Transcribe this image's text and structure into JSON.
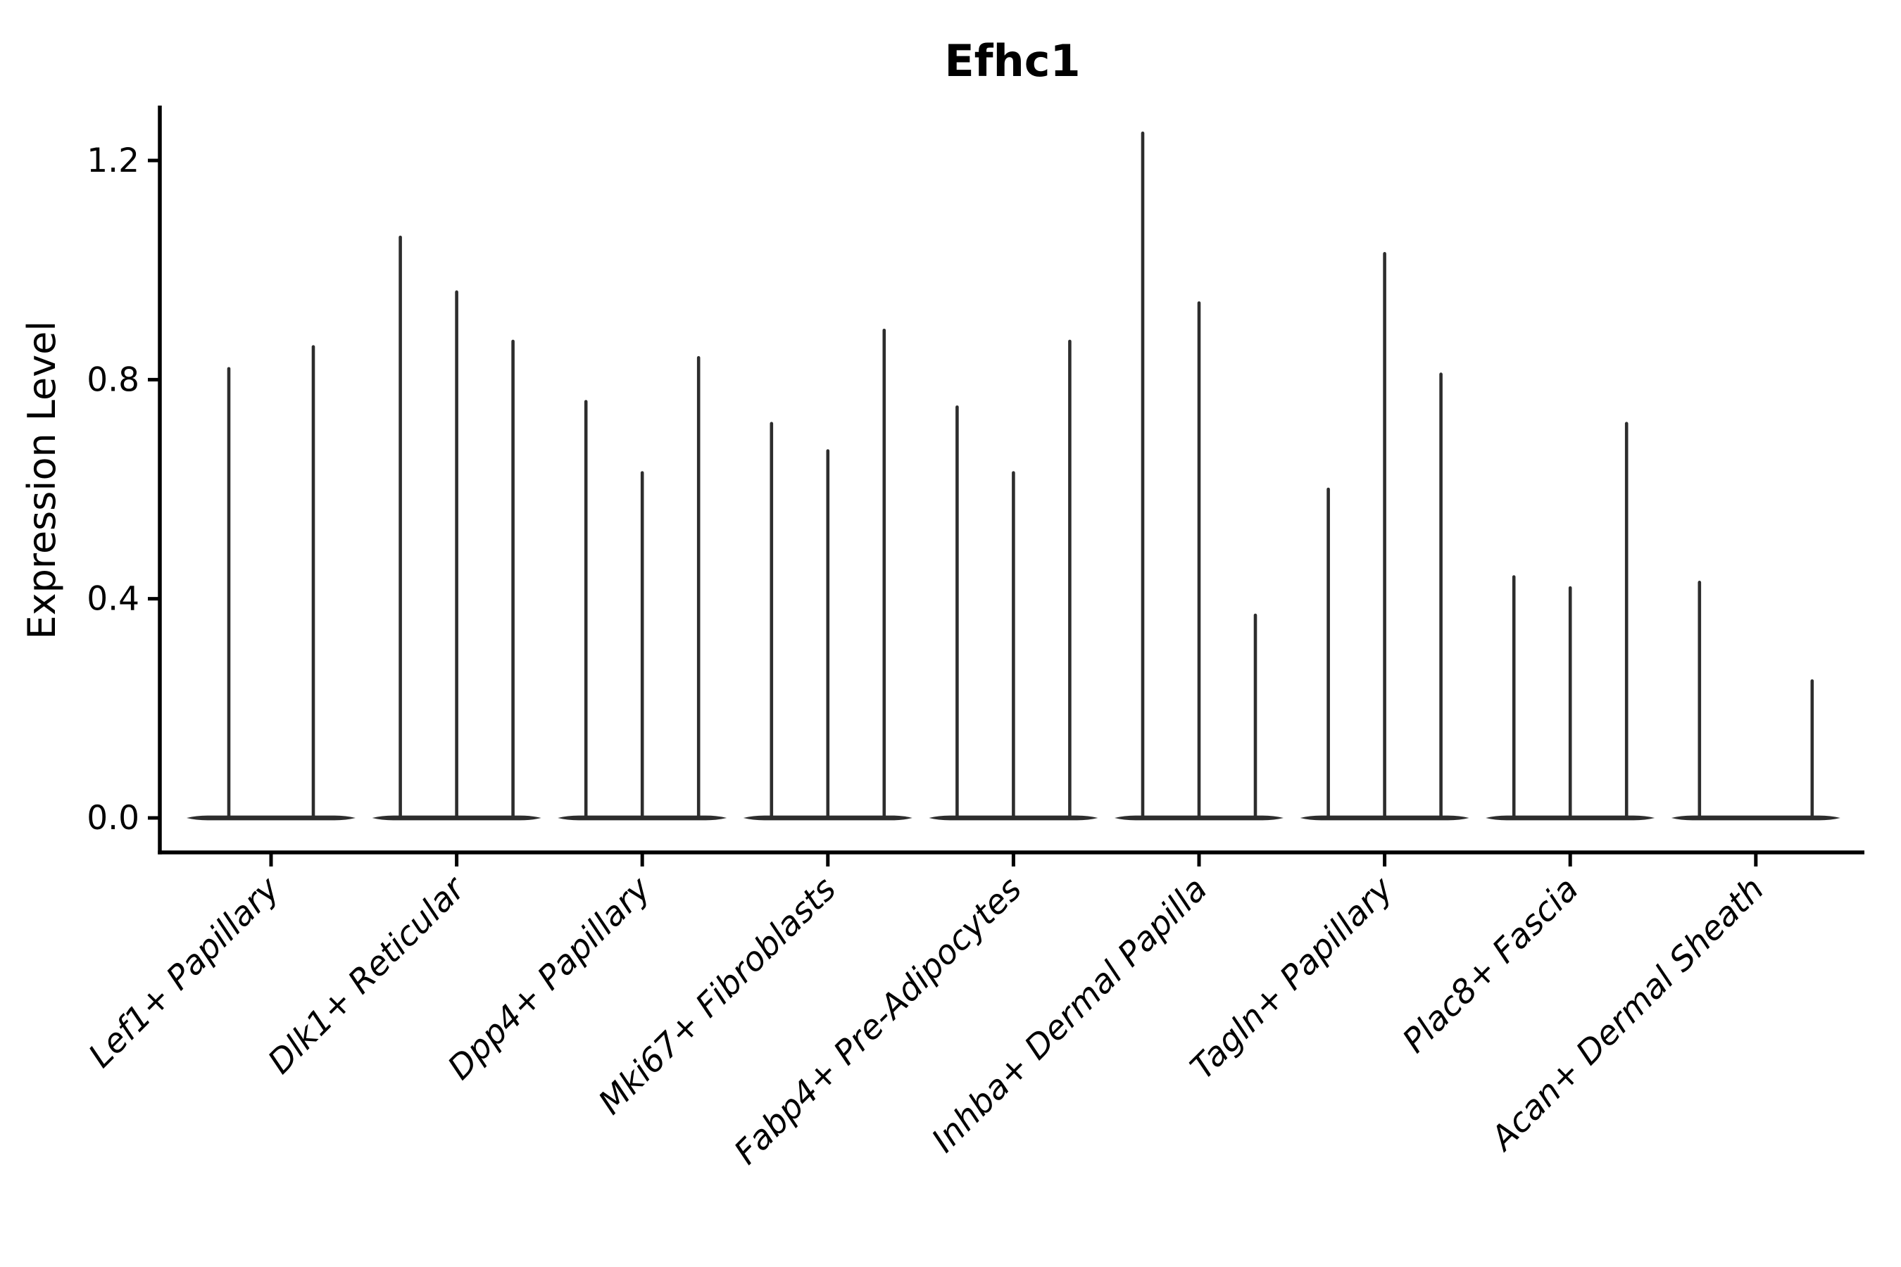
{
  "figure": {
    "background": "#ffffff"
  },
  "chart_data": {
    "type": "violin",
    "title": "Efhc1",
    "ylabel": "Expression Level",
    "xlabel": "",
    "grid": false,
    "legend": "none",
    "ylim": [
      -0.065,
      1.3
    ],
    "yticks": [
      0.0,
      0.4,
      0.8,
      1.2
    ],
    "ytick_labels": [
      "0.0",
      "0.4",
      "0.8",
      "1.2"
    ],
    "x_label_rotation_deg": 45,
    "x_labels_italic": true,
    "style_note_colors": {
      "violin_stroke": "#2d2d2d",
      "axis": "#000000",
      "text": "#000000"
    },
    "categories": [
      "Lef1+ Papillary",
      "Dlk1+ Reticular",
      "Dpp4+ Papillary",
      "Mki67+ Fibroblasts",
      "Fabp4+ Pre-Adipocytes",
      "Inhba+ Dermal Papilla",
      "Tagln+ Papillary",
      "Plac8+ Fascia",
      "Acan+ Dermal Sheath"
    ],
    "groups": [
      {
        "category": "Lef1+ Papillary",
        "violin_max_expression": [
          0.82,
          0.86
        ]
      },
      {
        "category": "Dlk1+ Reticular",
        "violin_max_expression": [
          1.06,
          0.96,
          0.87
        ]
      },
      {
        "category": "Dpp4+ Papillary",
        "violin_max_expression": [
          0.76,
          0.63,
          0.84
        ]
      },
      {
        "category": "Mki67+ Fibroblasts",
        "violin_max_expression": [
          0.72,
          0.67,
          0.89
        ]
      },
      {
        "category": "Fabp4+ Pre-Adipocytes",
        "violin_max_expression": [
          0.75,
          0.63,
          0.87
        ]
      },
      {
        "category": "Inhba+ Dermal Papilla",
        "violin_max_expression": [
          1.25,
          0.94,
          0.37
        ]
      },
      {
        "category": "Tagln+ Papillary",
        "violin_max_expression": [
          0.6,
          1.03,
          0.81
        ]
      },
      {
        "category": "Plac8+ Fascia",
        "violin_max_expression": [
          0.44,
          0.42,
          0.72
        ]
      },
      {
        "category": "Acan+ Dermal Sheath",
        "violin_max_expression": [
          0.43,
          0.0,
          0.25
        ]
      }
    ]
  }
}
